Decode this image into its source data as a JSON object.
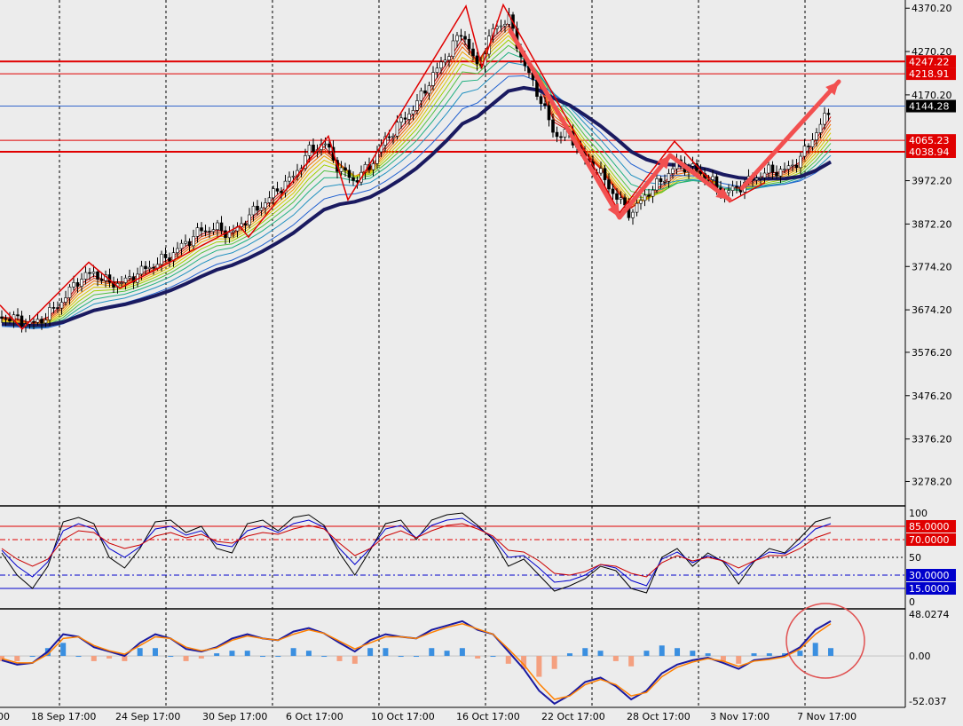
{
  "chart_data": [
    {
      "type": "candlestick",
      "panel": "price",
      "ylim": [
        3230,
        4385
      ],
      "y_ticks": [
        "4370.20",
        "4270.20",
        "4170.20",
        "3972.20",
        "3872.20",
        "3774.20",
        "3674.20",
        "3576.20",
        "3476.20",
        "3376.20",
        "3278.20"
      ],
      "x_ticks": [
        "00",
        "18 Sep 17:00",
        "24 Sep 17:00",
        "30 Sep 17:00",
        "6 Oct 17:00",
        "10 Oct 17:00",
        "16 Oct 17:00",
        "22 Oct 17:00",
        "28 Oct 17:00",
        "3 Nov 17:00",
        "7 Nov 17:00"
      ],
      "close_path": [
        3658,
        3652,
        3640,
        3662,
        3698,
        3745,
        3760,
        3735,
        3738,
        3762,
        3780,
        3800,
        3830,
        3858,
        3862,
        3848,
        3888,
        3918,
        3952,
        3982,
        4040,
        4060,
        3998,
        3972,
        4008,
        4068,
        4108,
        4148,
        4210,
        4262,
        4318,
        4228,
        4320,
        4348,
        4242,
        4168,
        4078,
        4080,
        4018,
        3988,
        3935,
        3895,
        3942,
        3972,
        4012,
        4002,
        3978,
        3942,
        3958,
        3978,
        3995,
        3995,
        4022,
        4082,
        4138
      ],
      "overlay_lines": [
        {
          "label": "4247.22",
          "value": 4247.22,
          "color": "#e00000"
        },
        {
          "label": "4218.91",
          "value": 4218.91,
          "color": "#e00000"
        },
        {
          "label": "4144.28",
          "value": 4144.28,
          "color": "#000000"
        },
        {
          "label": "4065.23",
          "value": 4065.23,
          "color": "#e00000"
        },
        {
          "label": "4038.94",
          "value": 4038.94,
          "color": "#e00000"
        }
      ]
    },
    {
      "type": "line",
      "panel": "stochastic",
      "ylim": [
        0,
        100
      ],
      "y_ticks": [
        "100",
        "50",
        "0"
      ],
      "levels": [
        {
          "label": "85.0000",
          "value": 85,
          "color": "#e00000"
        },
        {
          "label": "70.0000",
          "value": 70,
          "color": "#e00000"
        },
        {
          "label": "30.0000",
          "value": 30,
          "color": "#0000cc"
        },
        {
          "label": "15.0000",
          "value": 15,
          "color": "#0000cc"
        }
      ],
      "series": [
        {
          "color": "#000000",
          "values": [
            55,
            30,
            15,
            40,
            90,
            95,
            88,
            50,
            38,
            60,
            90,
            92,
            78,
            85,
            60,
            55,
            88,
            92,
            80,
            95,
            98,
            86,
            55,
            30,
            58,
            88,
            92,
            70,
            92,
            98,
            100,
            86,
            70,
            40,
            48,
            30,
            12,
            18,
            26,
            40,
            35,
            15,
            10,
            50,
            60,
            40,
            55,
            45,
            20,
            45,
            60,
            55,
            72,
            90,
            95
          ]
        },
        {
          "color": "#0000cc",
          "values": [
            58,
            40,
            28,
            45,
            80,
            88,
            82,
            60,
            50,
            62,
            82,
            85,
            75,
            80,
            65,
            62,
            80,
            85,
            78,
            88,
            92,
            84,
            60,
            42,
            60,
            82,
            86,
            72,
            86,
            92,
            94,
            84,
            72,
            50,
            52,
            38,
            22,
            24,
            30,
            42,
            38,
            24,
            18,
            48,
            56,
            44,
            52,
            46,
            30,
            46,
            56,
            54,
            66,
            82,
            88
          ]
        },
        {
          "color": "#cc0000",
          "values": [
            60,
            48,
            40,
            48,
            70,
            80,
            78,
            66,
            60,
            64,
            74,
            78,
            72,
            76,
            68,
            66,
            74,
            78,
            76,
            82,
            86,
            82,
            66,
            52,
            60,
            74,
            80,
            72,
            80,
            86,
            88,
            82,
            74,
            58,
            56,
            46,
            32,
            30,
            34,
            42,
            40,
            32,
            28,
            44,
            52,
            46,
            50,
            46,
            38,
            46,
            52,
            52,
            60,
            72,
            78
          ]
        }
      ]
    },
    {
      "type": "line",
      "panel": "macd",
      "ylim": [
        -52.037,
        48.0274
      ],
      "y_ticks": [
        "48.0274",
        "0.00",
        "-52.037"
      ],
      "series": [
        {
          "color": "#1a1aa0",
          "values": [
            -5,
            -10,
            -8,
            5,
            25,
            22,
            10,
            5,
            0,
            15,
            25,
            20,
            8,
            5,
            10,
            20,
            25,
            20,
            18,
            28,
            32,
            26,
            15,
            5,
            18,
            25,
            22,
            20,
            30,
            35,
            40,
            30,
            25,
            5,
            -15,
            -40,
            -55,
            -45,
            -30,
            -25,
            -35,
            -50,
            -40,
            -20,
            -10,
            -5,
            -2,
            -8,
            -15,
            -5,
            -3,
            0,
            10,
            30,
            40
          ]
        },
        {
          "color": "#ff8000",
          "values": [
            -3,
            -8,
            -8,
            2,
            20,
            22,
            12,
            6,
            2,
            12,
            22,
            20,
            10,
            6,
            9,
            18,
            23,
            20,
            18,
            25,
            30,
            26,
            17,
            8,
            15,
            22,
            22,
            20,
            27,
            33,
            37,
            31,
            25,
            8,
            -10,
            -32,
            -50,
            -46,
            -33,
            -27,
            -33,
            -46,
            -42,
            -24,
            -13,
            -7,
            -3,
            -6,
            -12,
            -6,
            -4,
            -1,
            8,
            25,
            37
          ]
        }
      ],
      "histogram": [
        -2,
        -2,
        0,
        3,
        5,
        0,
        -2,
        -1,
        -2,
        3,
        3,
        0,
        -2,
        -1,
        1,
        2,
        2,
        0,
        0,
        3,
        2,
        0,
        -2,
        -3,
        3,
        3,
        0,
        0,
        3,
        2,
        3,
        -1,
        0,
        -3,
        -5,
        -8,
        -5,
        1,
        3,
        2,
        -2,
        -4,
        2,
        4,
        3,
        2,
        1,
        -2,
        -3,
        1,
        1,
        1,
        2,
        5,
        3
      ]
    }
  ]
}
